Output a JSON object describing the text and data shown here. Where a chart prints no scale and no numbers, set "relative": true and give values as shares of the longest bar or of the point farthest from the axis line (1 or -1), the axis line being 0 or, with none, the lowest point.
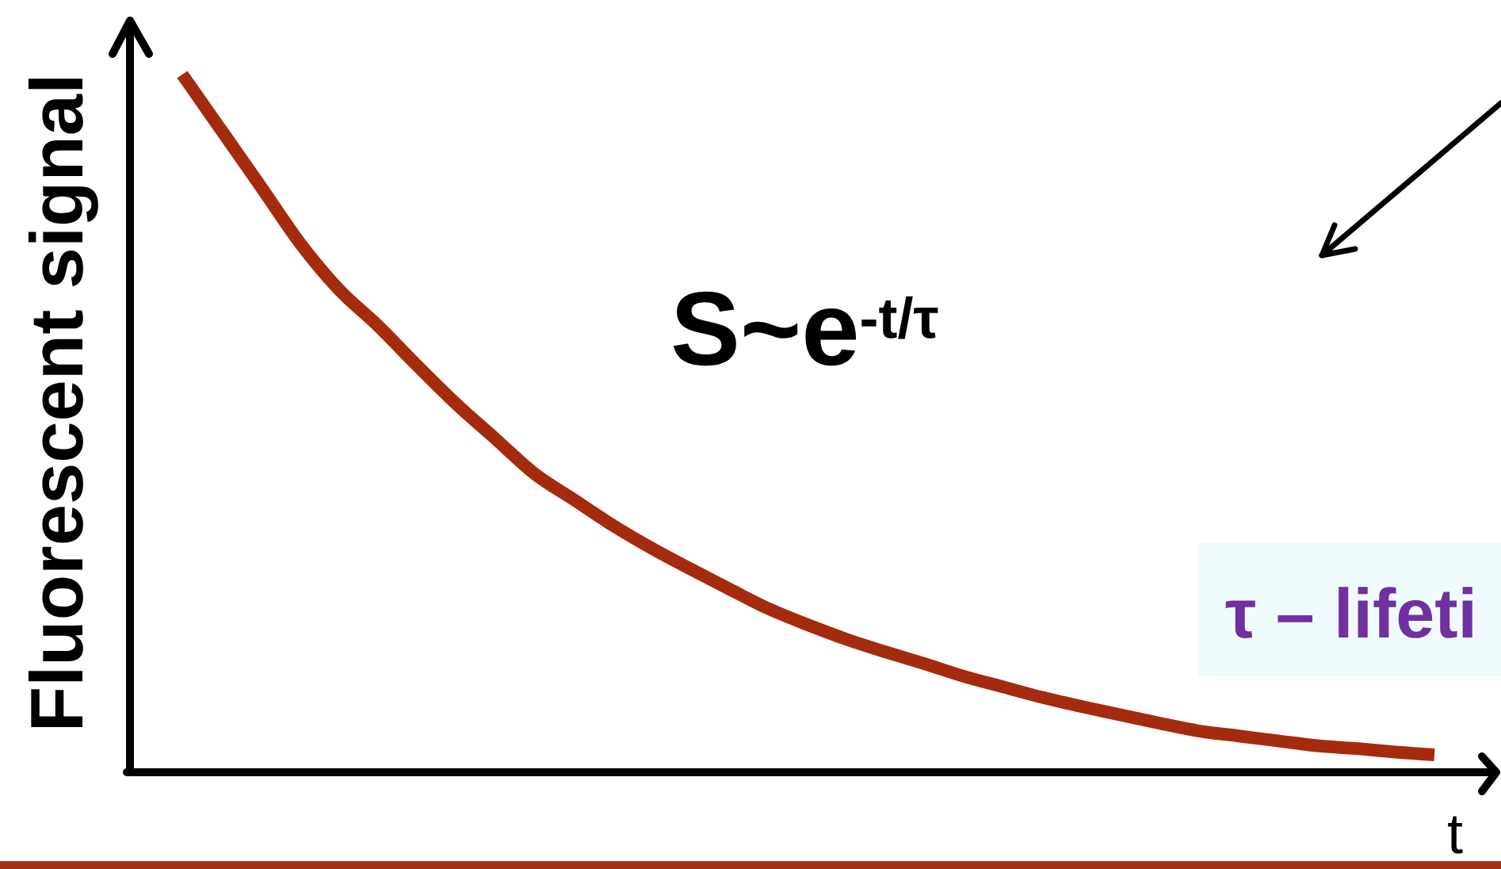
{
  "chart_data": {
    "type": "line",
    "xlabel": "t",
    "ylabel": "Fluorescent signal",
    "annotations": [
      "S~e$^{-t/τ}$",
      "τ – lifeti"
    ],
    "categories": [
      null,
      null,
      null,
      null,
      null,
      null,
      null,
      null,
      null,
      null,
      null,
      null,
      null,
      null,
      null,
      null,
      null,
      null,
      null,
      null,
      null,
      null,
      null,
      null,
      null,
      null,
      null,
      null,
      null,
      null,
      null,
      null,
      null
    ],
    "values": [
      1,
      0.92,
      0.84,
      0.759,
      0.692,
      0.64,
      0.583,
      0.528,
      0.478,
      0.428,
      0.391,
      0.354,
      0.321,
      0.291,
      0.262,
      0.234,
      0.211,
      0.19,
      0.172,
      0.155,
      0.137,
      0.122,
      0.107,
      0.094,
      0.082,
      0.07,
      0.059,
      0.052,
      0.045,
      0.038,
      0.034,
      0.029,
      0.025
    ],
    "color": "#a52b0f",
    "relative": true
  }
}
